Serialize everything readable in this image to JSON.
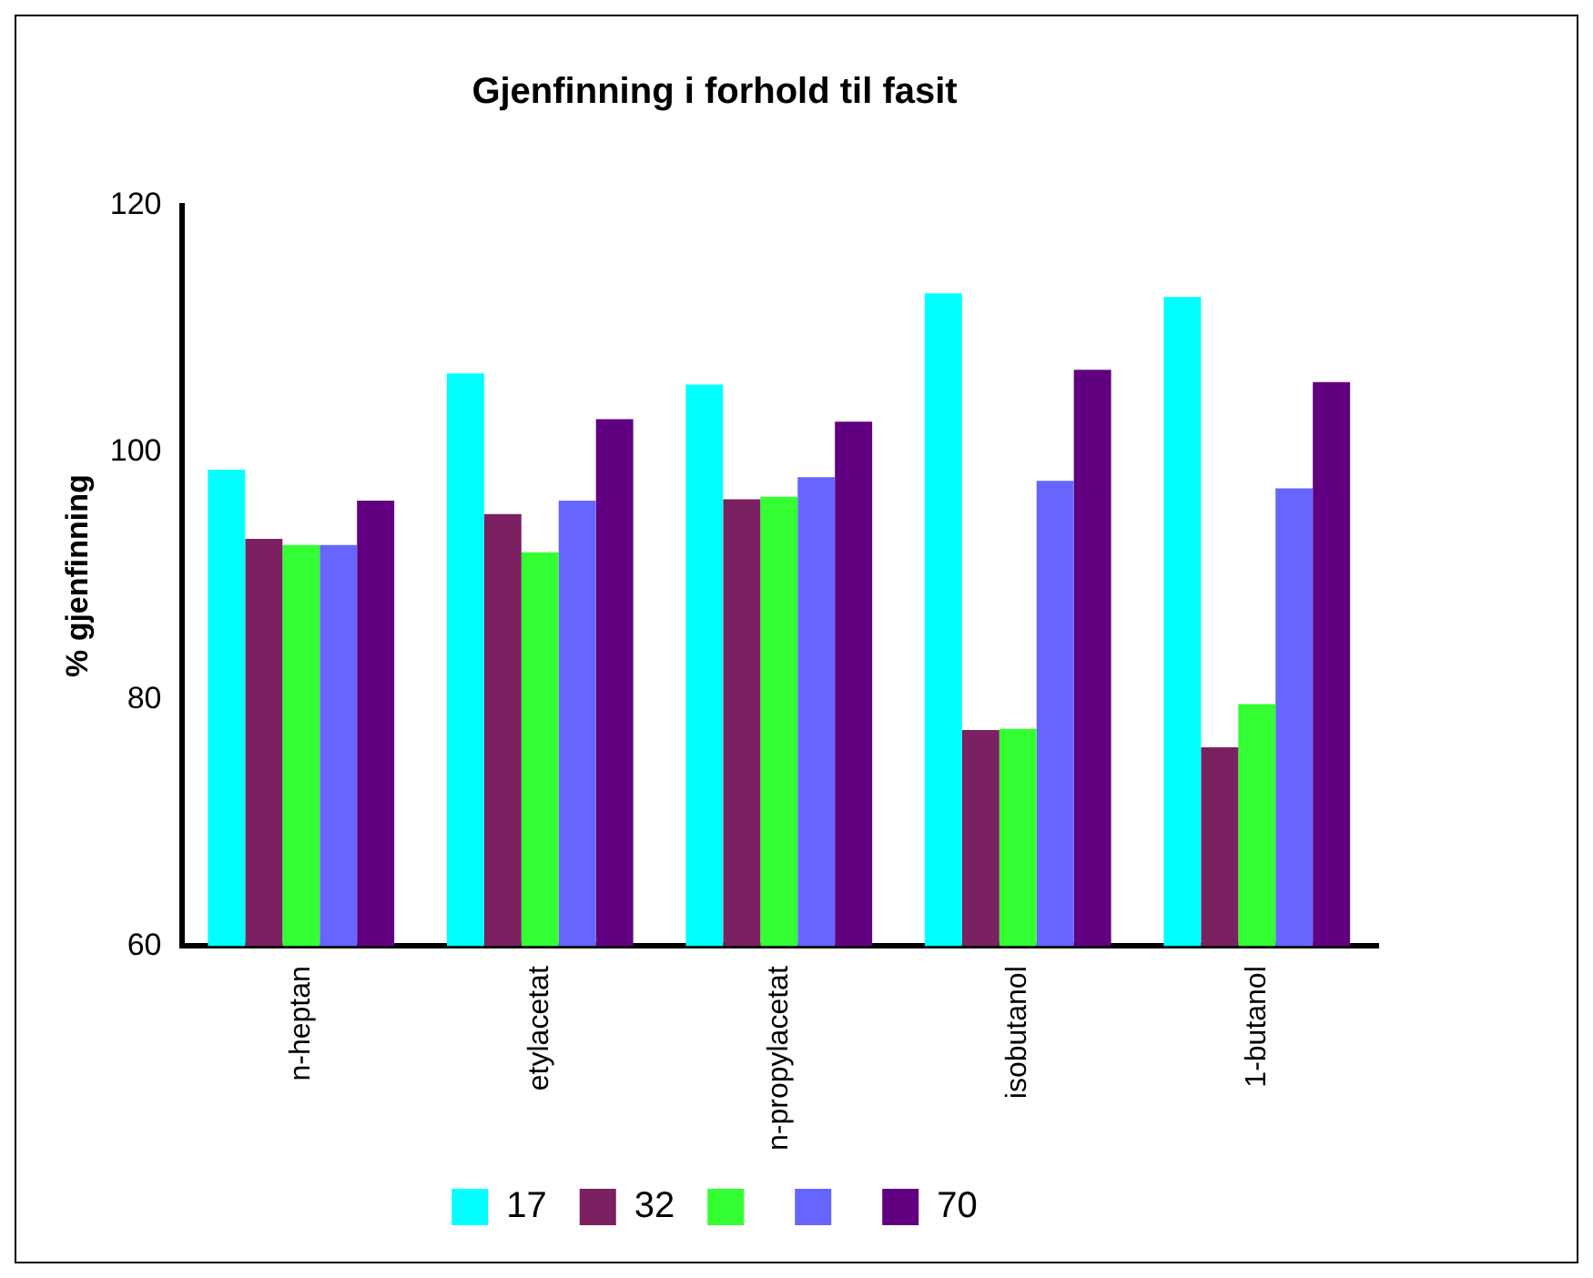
{
  "chart_data": {
    "type": "bar",
    "title": "Gjenfinning i forhold til fasit",
    "ylabel": "% gjenfinning",
    "categories": [
      "n-heptan",
      "etylacetat",
      "n-propylacetat",
      "isobutanol",
      "1-butanol"
    ],
    "series": [
      {
        "name": "17",
        "color": "#00ffff",
        "values": [
          98.6,
          106.4,
          105.5,
          112.9,
          112.6
        ]
      },
      {
        "name": "32",
        "color": "#7b2060",
        "values": [
          93.0,
          95.0,
          96.2,
          77.5,
          76.1
        ]
      },
      {
        "color": "#33ff33",
        "values": [
          92.5,
          91.9,
          96.4,
          77.6,
          79.6
        ]
      },
      {
        "color": "#6666ff",
        "values": [
          92.5,
          96.1,
          98.0,
          97.7,
          97.1
        ]
      },
      {
        "name": "70",
        "color": "#600080",
        "values": [
          96.1,
          102.7,
          102.5,
          106.7,
          105.7
        ]
      }
    ],
    "ylim": [
      60,
      120
    ],
    "yticks": [
      60,
      80,
      100,
      120
    ],
    "grid": false,
    "legend": "bottom"
  }
}
